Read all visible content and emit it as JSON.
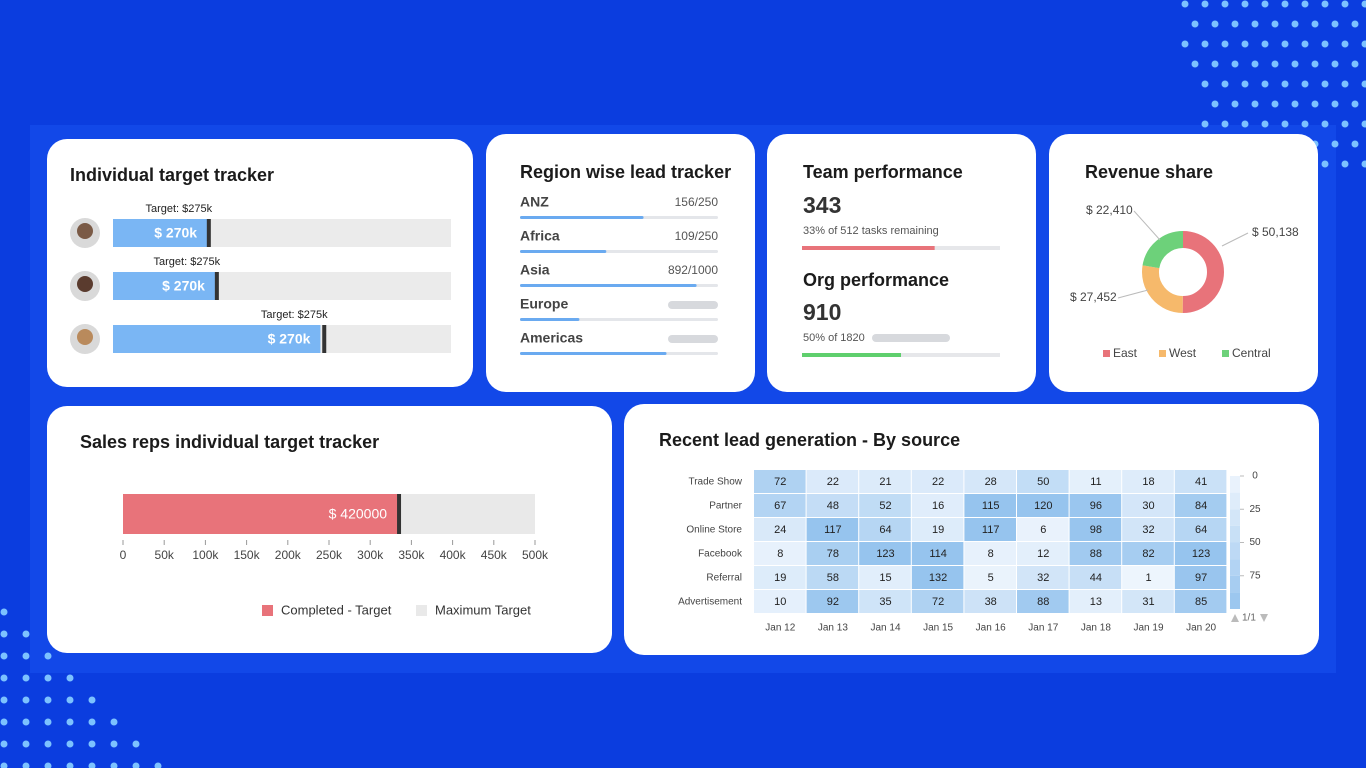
{
  "individual_target_tracker": {
    "title": "Individual target tracker",
    "rows": [
      {
        "target_label": "Target: $275k",
        "target": 275,
        "value": 270,
        "value_label": "$ 270k",
        "max": 970
      },
      {
        "target_label": "Target: $275k",
        "target": 275,
        "value": 270,
        "value_label": "$ 270k",
        "max": 895
      },
      {
        "target_label": "Target: $275k",
        "target": 275,
        "value": 270,
        "value_label": "$ 270k",
        "max": 440
      }
    ]
  },
  "region_lead_tracker": {
    "title": "Region wise lead tracker",
    "rows": [
      {
        "name": "ANZ",
        "value": 156,
        "total": 250,
        "value_label": "156/250"
      },
      {
        "name": "Africa",
        "value": 109,
        "total": 250,
        "value_label": "109/250"
      },
      {
        "name": "Asia",
        "value": 892,
        "total": 1000,
        "value_label": "892/1000"
      },
      {
        "name": "Europe",
        "percent": 30
      },
      {
        "name": "Americas",
        "percent": 74
      }
    ]
  },
  "team_performance": {
    "title": "Team performance",
    "value": 343,
    "total": 512,
    "subtitle": "33% of 512 tasks remaining",
    "color": "#e8737a"
  },
  "org_performance": {
    "title": "Org performance",
    "value": 910,
    "total": 1820,
    "subtitle": "50% of 1820",
    "color": "#5fcf6d"
  },
  "revenue_share": {
    "type": "pie",
    "title": "Revenue share",
    "categories": [
      "East",
      "West",
      "Central"
    ],
    "values": [
      50138,
      27452,
      22410
    ],
    "value_labels": [
      "$ 50,138",
      "$ 27,452",
      "$ 22,410"
    ],
    "colors": [
      "#e8737a",
      "#f6b96b",
      "#6dd17a"
    ]
  },
  "sales_reps_tracker": {
    "type": "bar",
    "title": "Sales reps individual target tracker",
    "value": 335000,
    "annotation": "$ 420000",
    "maximum": 500000,
    "xlim": [
      0,
      500000
    ],
    "xticks": [
      0,
      {
        "value": 50000,
        "label": "50k"
      },
      {
        "value": 100000,
        "label": "100k"
      },
      {
        "value": 150000,
        "label": "150k"
      },
      {
        "value": 200000,
        "label": "200k"
      },
      {
        "value": 250000,
        "label": "250k"
      },
      {
        "value": 300000,
        "label": "300k"
      },
      {
        "value": 350000,
        "label": "350k"
      },
      {
        "value": 400000,
        "label": "400k"
      },
      {
        "value": 450000,
        "label": "450k"
      },
      {
        "value": 500000,
        "label": "500k"
      }
    ],
    "legend": [
      {
        "name": "Completed - Target",
        "color": "#e8737a"
      },
      {
        "name": "Maximum Target",
        "color": "#e9e9e9"
      }
    ]
  },
  "lead_generation": {
    "type": "heatmap",
    "title": "Recent lead generation - By source",
    "rows": [
      "Trade Show",
      "Partner",
      "Online Store",
      "Facebook",
      "Referral",
      "Advertisement"
    ],
    "columns": [
      "Jan 12",
      "Jan 13",
      "Jan 14",
      "Jan 15",
      "Jan 16",
      "Jan 17",
      "Jan 18",
      "Jan 19",
      "Jan 20"
    ],
    "values": [
      [
        72,
        22,
        21,
        22,
        28,
        50,
        11,
        18,
        41
      ],
      [
        67,
        48,
        52,
        16,
        115,
        120,
        96,
        30,
        84
      ],
      [
        24,
        117,
        64,
        19,
        117,
        6,
        98,
        32,
        64
      ],
      [
        8,
        78,
        123,
        114,
        8,
        12,
        88,
        82,
        123
      ],
      [
        19,
        58,
        15,
        132,
        5,
        32,
        44,
        1,
        97
      ],
      [
        10,
        92,
        35,
        72,
        38,
        88,
        13,
        31,
        85
      ]
    ],
    "zlim": [
      0,
      100
    ],
    "scale_ticks": [
      0,
      25,
      50,
      75
    ],
    "pager": "1/1"
  }
}
